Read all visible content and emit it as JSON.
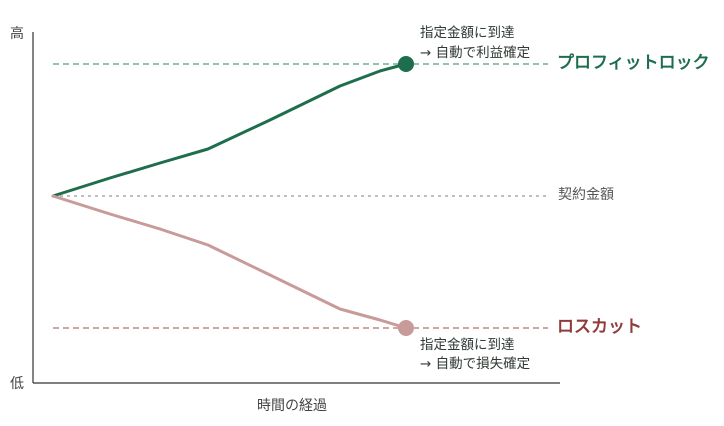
{
  "axis": {
    "y_high": "高",
    "y_low": "低",
    "x_label": "時間の経過"
  },
  "lines": {
    "profit_label": "プロフィットロック",
    "contract_label": "契約金額",
    "loss_label": "ロスカット"
  },
  "notes": {
    "profit_line1": "指定金額に到達",
    "profit_line2": "→ 自動で利益確定",
    "loss_line1": "指定金額に到達",
    "loss_line2": "→ 自動で損失確定"
  },
  "colors": {
    "profit": "#1e6e4e",
    "profit_dashed": "#5a9a84",
    "loss": "#c99a9a",
    "loss_text": "#8f3b3b",
    "loss_dashed": "#b07070",
    "contract_dashed": "#999999",
    "axis": "#333333"
  }
}
